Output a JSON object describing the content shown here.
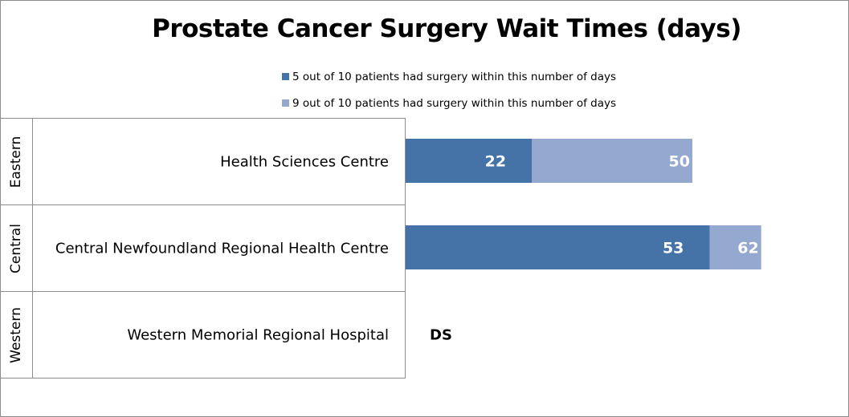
{
  "chart_data": {
    "type": "bar",
    "orientation": "horizontal",
    "title": "Prostate Cancer Surgery Wait Times (days)",
    "legend_position": "top",
    "grid": false,
    "xlim": [
      0,
      77
    ],
    "series": [
      {
        "name": "5 out of 10 patients had surgery within this number of days",
        "color": "#4573a7",
        "values": [
          22,
          53,
          null
        ]
      },
      {
        "name": "9 out of 10 patients had surgery within this number of days",
        "color": "#95a8d0",
        "values": [
          50,
          62,
          null
        ]
      }
    ],
    "categories": [
      {
        "region": "Eastern",
        "label": "Health Sciences Centre"
      },
      {
        "region": "Central",
        "label": "Central Newfoundland Regional Health Centre"
      },
      {
        "region": "Western",
        "label": "Western Memorial Regional Hospital",
        "note": "DS"
      }
    ]
  }
}
